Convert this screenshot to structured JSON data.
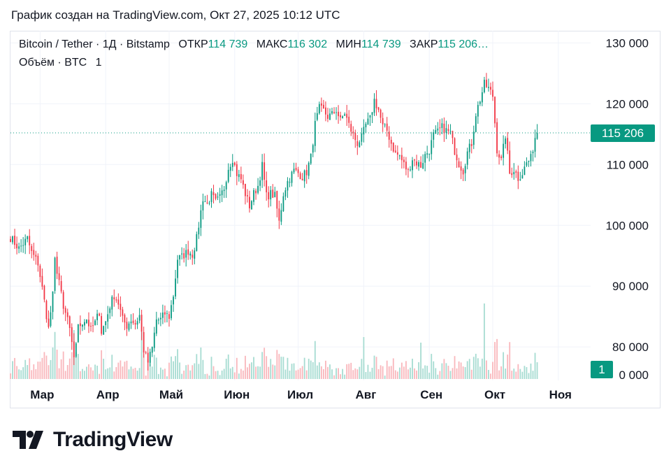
{
  "caption": "График создан на TradingView.com, Окт 27, 2025 10:12 UTC",
  "legend": {
    "symbol": "Bitcoin / Tether · 1Д · Bitstamp",
    "open_label": "ОТКР",
    "open_value": "114 739",
    "high_label": "МАКС",
    "high_value": "116 302",
    "low_label": "МИН",
    "low_value": "114 739",
    "close_label": "ЗАКР",
    "close_value": "115 206…",
    "volume_label": "Объём · BTC",
    "volume_value": "1"
  },
  "colors": {
    "up": "#089981",
    "down": "#f23645",
    "up_light": "#a7dcd2",
    "down_light": "#f9b7bc",
    "grid": "#f0f3fa",
    "price_line": "#089981"
  },
  "brand": "TradingView",
  "chart_data": {
    "type": "candlestick",
    "title": "Bitcoin / Tether · 1Д · Bitstamp",
    "y_ticks": [
      80000,
      90000,
      100000,
      110000,
      120000,
      130000
    ],
    "y_tick_labels": [
      "80 000",
      "90 000",
      "100 000",
      "110 000",
      "120 000",
      "130 000"
    ],
    "ylim": [
      74500,
      132000
    ],
    "x_months": [
      "Мар",
      "Апр",
      "Май",
      "Июн",
      "Июл",
      "Авг",
      "Сен",
      "Окт",
      "Ноя"
    ],
    "x_month_days": [
      0,
      31,
      61,
      92,
      122,
      153,
      184,
      214,
      245
    ],
    "last_price": 115206,
    "last_price_label": "115 206",
    "volume_badge": "1",
    "points": [
      [
        -14,
        98000
      ],
      [
        -10,
        96200
      ],
      [
        -6,
        97800
      ],
      [
        -4,
        95500
      ],
      [
        -1,
        93800
      ],
      [
        2,
        87500
      ],
      [
        4,
        83000
      ],
      [
        6,
        88500
      ],
      [
        7,
        94200
      ],
      [
        9,
        91000
      ],
      [
        11,
        86000
      ],
      [
        13,
        84800
      ],
      [
        15,
        80200
      ],
      [
        16,
        78500
      ],
      [
        18,
        83200
      ],
      [
        20,
        84200
      ],
      [
        22,
        84600
      ],
      [
        24,
        82800
      ],
      [
        26,
        84000
      ],
      [
        28,
        85800
      ],
      [
        29,
        82500
      ],
      [
        31,
        84200
      ],
      [
        33,
        86800
      ],
      [
        35,
        88500
      ],
      [
        37,
        87200
      ],
      [
        39,
        84500
      ],
      [
        41,
        83500
      ],
      [
        43,
        84500
      ],
      [
        45,
        83800
      ],
      [
        47,
        85200
      ],
      [
        49,
        79500
      ],
      [
        51,
        77500
      ],
      [
        53,
        79800
      ],
      [
        55,
        84500
      ],
      [
        57,
        84500
      ],
      [
        59,
        85500
      ],
      [
        61,
        85000
      ],
      [
        63,
        88500
      ],
      [
        65,
        94500
      ],
      [
        67,
        94800
      ],
      [
        70,
        95800
      ],
      [
        72,
        95200
      ],
      [
        74,
        97800
      ],
      [
        77,
        104500
      ],
      [
        79,
        103500
      ],
      [
        81,
        105000
      ],
      [
        83,
        103800
      ],
      [
        85,
        104500
      ],
      [
        87,
        106200
      ],
      [
        89,
        109500
      ],
      [
        91,
        111000
      ],
      [
        93,
        108500
      ],
      [
        95,
        107600
      ],
      [
        97,
        105200
      ],
      [
        99,
        103200
      ],
      [
        101,
        105200
      ],
      [
        103,
        106500
      ],
      [
        105,
        109800
      ],
      [
        107,
        104800
      ],
      [
        109,
        105200
      ],
      [
        111,
        104800
      ],
      [
        113,
        100500
      ],
      [
        115,
        105200
      ],
      [
        117,
        107200
      ],
      [
        120,
        109000
      ],
      [
        122,
        108600
      ],
      [
        124,
        108000
      ],
      [
        126,
        108800
      ],
      [
        128,
        111200
      ],
      [
        130,
        116600
      ],
      [
        132,
        119200
      ],
      [
        134,
        118800
      ],
      [
        136,
        117900
      ],
      [
        138,
        118200
      ],
      [
        140,
        119000
      ],
      [
        142,
        117200
      ],
      [
        144,
        118500
      ],
      [
        146,
        116500
      ],
      [
        148,
        114800
      ],
      [
        150,
        113500
      ],
      [
        152,
        114400
      ],
      [
        154,
        116500
      ],
      [
        156,
        117500
      ],
      [
        158,
        120600
      ],
      [
        160,
        119000
      ],
      [
        162,
        116200
      ],
      [
        164,
        115600
      ],
      [
        166,
        113500
      ],
      [
        168,
        111800
      ],
      [
        170,
        111400
      ],
      [
        172,
        110000
      ],
      [
        174,
        108800
      ],
      [
        176,
        111000
      ],
      [
        178,
        110300
      ],
      [
        180,
        109800
      ],
      [
        182,
        111500
      ],
      [
        184,
        112400
      ],
      [
        186,
        114800
      ],
      [
        188,
        115300
      ],
      [
        190,
        116100
      ],
      [
        192,
        115600
      ],
      [
        194,
        115200
      ],
      [
        196,
        112300
      ],
      [
        198,
        110200
      ],
      [
        200,
        109000
      ],
      [
        202,
        112000
      ],
      [
        204,
        113500
      ],
      [
        206,
        118400
      ],
      [
        208,
        120700
      ],
      [
        210,
        123200
      ],
      [
        212,
        122500
      ],
      [
        214,
        121300
      ],
      [
        216,
        112500
      ],
      [
        218,
        110600
      ],
      [
        220,
        114800
      ],
      [
        222,
        108500
      ],
      [
        224,
        109200
      ],
      [
        226,
        107800
      ],
      [
        228,
        108600
      ],
      [
        230,
        110300
      ],
      [
        232,
        111000
      ],
      [
        234,
        114500
      ],
      [
        235,
        115206
      ]
    ]
  }
}
